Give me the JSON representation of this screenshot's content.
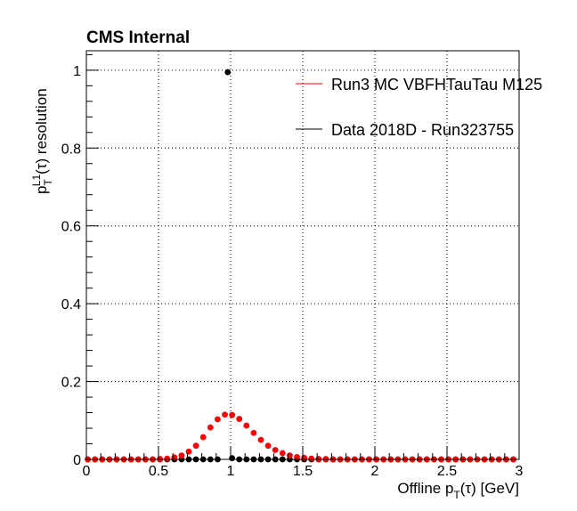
{
  "chart_data": {
    "type": "scatter",
    "title": "CMS Internal",
    "xlabel": "Offline p_T(τ) [GeV]",
    "xlabel_main": "Offline p",
    "xlabel_sub": "T",
    "xlabel_tail": "(τ) [GeV]",
    "ylabel": "p_T^L1(τ) resolution",
    "ylabel_main": "p",
    "ylabel_sub": "T",
    "ylabel_sup": "L1",
    "ylabel_tail": "(τ) resolution",
    "xlim": [
      0,
      3
    ],
    "ylim": [
      0,
      1.05
    ],
    "xticks": [
      0,
      0.5,
      1,
      1.5,
      2,
      2.5,
      3
    ],
    "xtick_labels": [
      "0",
      "0.5",
      "1",
      "1.5",
      "2",
      "2.5",
      "3"
    ],
    "yticks": [
      0,
      0.2,
      0.4,
      0.6,
      0.8,
      1
    ],
    "ytick_labels": [
      "0",
      "0.2",
      "0.4",
      "0.6",
      "0.8",
      "1"
    ],
    "grid": true,
    "legend_position": "top-right",
    "series": [
      {
        "name": "Run3 MC VBFHTauTau M125",
        "color": "#ff0000",
        "x": [
          0.01,
          0.06,
          0.11,
          0.16,
          0.21,
          0.26,
          0.31,
          0.36,
          0.41,
          0.46,
          0.51,
          0.56,
          0.61,
          0.66,
          0.71,
          0.76,
          0.81,
          0.86,
          0.91,
          0.96,
          1.01,
          1.06,
          1.11,
          1.16,
          1.21,
          1.26,
          1.31,
          1.36,
          1.41,
          1.46,
          1.51,
          1.56,
          1.61,
          1.66,
          1.71,
          1.76,
          1.81,
          1.86,
          1.91,
          1.96,
          2.01,
          2.06,
          2.11,
          2.16,
          2.21,
          2.26,
          2.31,
          2.36,
          2.41,
          2.46,
          2.51,
          2.56,
          2.61,
          2.66,
          2.71,
          2.76,
          2.81,
          2.86,
          2.91,
          2.96
        ],
        "y": [
          0,
          0,
          0,
          0,
          0,
          0,
          0,
          0,
          0,
          0,
          0.001,
          0.002,
          0.005,
          0.01,
          0.02,
          0.035,
          0.057,
          0.082,
          0.103,
          0.115,
          0.114,
          0.104,
          0.087,
          0.068,
          0.05,
          0.035,
          0.024,
          0.016,
          0.01,
          0.006,
          0.004,
          0.002,
          0.001,
          0.001,
          0,
          0,
          0,
          0,
          0,
          0,
          0,
          0,
          0,
          0,
          0,
          0,
          0,
          0,
          0,
          0,
          0,
          0,
          0,
          0,
          0,
          0,
          0,
          0,
          0,
          0
        ]
      },
      {
        "name": "Data 2018D - Run323755",
        "color": "#000000",
        "x": [
          0.01,
          0.06,
          0.11,
          0.16,
          0.21,
          0.26,
          0.31,
          0.36,
          0.41,
          0.46,
          0.51,
          0.56,
          0.61,
          0.66,
          0.71,
          0.76,
          0.81,
          0.86,
          0.91,
          0.98,
          1.01,
          1.06,
          1.11,
          1.16,
          1.21,
          1.26,
          1.31,
          1.36,
          1.41,
          1.46,
          1.51,
          1.56,
          1.61,
          1.66,
          1.71,
          1.76,
          1.81,
          1.86,
          1.91,
          1.96,
          2.01,
          2.06,
          2.11,
          2.16,
          2.21,
          2.26,
          2.31,
          2.36,
          2.41,
          2.46,
          2.51,
          2.56,
          2.61,
          2.66,
          2.71,
          2.76,
          2.81,
          2.86,
          2.91,
          2.96
        ],
        "y": [
          0,
          0,
          0,
          0,
          0,
          0,
          0,
          0,
          0,
          0,
          0,
          0,
          0,
          0,
          0,
          0,
          0,
          0,
          0,
          0.995,
          0.003,
          0,
          0,
          0,
          0,
          0,
          0,
          0,
          0,
          0,
          0,
          0,
          0,
          0,
          0,
          0,
          0,
          0,
          0,
          0,
          0,
          0,
          0,
          0,
          0,
          0,
          0,
          0,
          0,
          0,
          0,
          0,
          0,
          0,
          0,
          0,
          0,
          0,
          0,
          0
        ]
      }
    ]
  }
}
